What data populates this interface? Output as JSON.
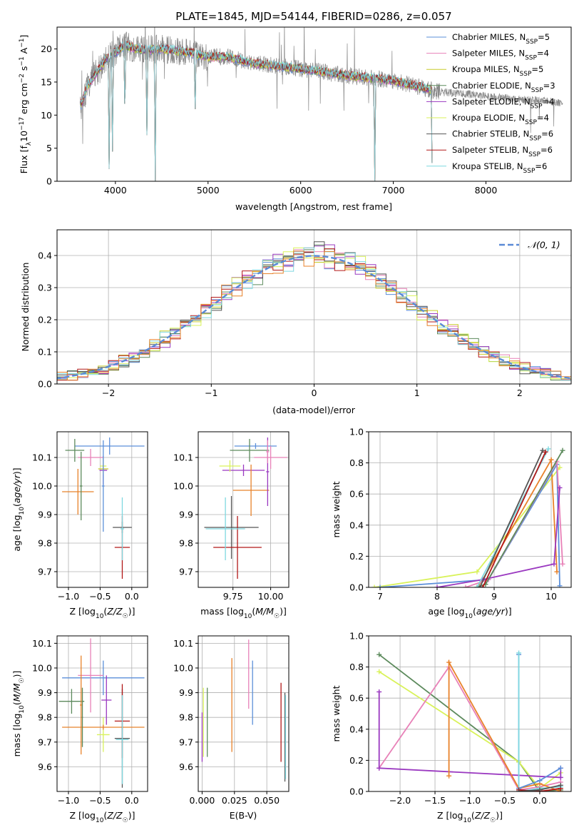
{
  "figure": {
    "title": "PLATE=1845, MJD=54144, FIBERID=0286, z=0.057"
  },
  "colors": {
    "chabrier_miles": "#5b8fd9",
    "salpeter_miles": "#e881b8",
    "kroupa_miles": "#c8cc2c",
    "chabrier_elodie": "#5c8a5c",
    "salpeter_elodie": "#9a38c0",
    "kroupa_elodie": "#d9f25a",
    "chabrier_stelib": "#555555",
    "salpeter_stelib": "#b21818",
    "kroupa_stelib": "#7fd8e0",
    "orange": "#e8822a",
    "data": "#8a8a8a",
    "grid": "#b0b0b0",
    "normal": "#5a8ad6"
  },
  "chart_data": [
    {
      "id": "spectrum",
      "type": "line",
      "xlabel": "wavelength [Angstrom, rest frame]",
      "ylabel": "Flux [f_λ 10^-17 erg cm^-2 s^-1 A^-1]",
      "xlim": [
        3370,
        8920
      ],
      "ylim": [
        0,
        23.3
      ],
      "xticks": [
        4000,
        5000,
        6000,
        7000,
        8000
      ],
      "yticks": [
        0,
        5,
        10,
        15,
        20
      ],
      "grid": false,
      "legend_position": "top-right",
      "legend": [
        {
          "label": "Chabrier MILES, N",
          "sub": "SSP",
          "n": "=5",
          "color": "#5b8fd9"
        },
        {
          "label": "Salpeter MILES, N",
          "sub": "SSP",
          "n": "=4",
          "color": "#e881b8"
        },
        {
          "label": "Kroupa MILES, N",
          "sub": "SSP",
          "n": "=5",
          "color": "#c8cc2c"
        },
        {
          "label": "Chabrier ELODIE, N",
          "sub": "SSP",
          "n": "=3",
          "color": "#5c8a5c"
        },
        {
          "label": "Salpeter ELODIE, N",
          "sub": "SSP",
          "n": "=4",
          "color": "#9a38c0"
        },
        {
          "label": "Kroupa ELODIE, N",
          "sub": "SSP",
          "n": "=4",
          "color": "#d9f25a"
        },
        {
          "label": "Chabrier STELIB, N",
          "sub": "SSP",
          "n": "=6",
          "color": "#555555"
        },
        {
          "label": "Salpeter STELIB, N",
          "sub": "SSP",
          "n": "=6",
          "color": "#b21818"
        },
        {
          "label": "Kroupa STELIB, N",
          "sub": "SSP",
          "n": "=6",
          "color": "#7fd8e0"
        }
      ],
      "continuum": [
        [
          3630,
          11.5
        ],
        [
          3700,
          14.5
        ],
        [
          3800,
          16.5
        ],
        [
          3900,
          18.5
        ],
        [
          4000,
          19.5
        ],
        [
          4100,
          20.5
        ],
        [
          4300,
          19.8
        ],
        [
          4500,
          20
        ],
        [
          4800,
          19.5
        ],
        [
          5000,
          18.8
        ],
        [
          5200,
          18.8
        ],
        [
          5500,
          17.8
        ],
        [
          6000,
          17.0
        ],
        [
          6500,
          16.0
        ],
        [
          7000,
          15.2
        ],
        [
          7500,
          13.5
        ],
        [
          7800,
          13.2
        ],
        [
          8000,
          12.8
        ],
        [
          8200,
          12.6
        ],
        [
          8400,
          12.3
        ],
        [
          8600,
          12.2
        ],
        [
          8830,
          11.8
        ]
      ],
      "data_range": [
        3620,
        8830
      ],
      "model_range": [
        3620,
        7420
      ],
      "absorption_lines": [
        [
          3933,
          0
        ],
        [
          3968,
          4.5
        ],
        [
          4102,
          9.5
        ],
        [
          4340,
          7
        ],
        [
          4430,
          0
        ],
        [
          4861,
          10
        ],
        [
          6800,
          0
        ],
        [
          7420,
          0
        ]
      ]
    },
    {
      "id": "residual_hist",
      "type": "histogram",
      "xlabel": "(data-model)/error",
      "ylabel": "Normed distribution",
      "xlim": [
        -2.5,
        2.5
      ],
      "ylim": [
        0,
        0.48
      ],
      "xticks": [
        -2,
        -1,
        0,
        1,
        2
      ],
      "yticks": [
        0.0,
        0.1,
        0.2,
        0.3,
        0.4
      ],
      "bin_width": 0.1,
      "grid": true,
      "legend_position": "top-right",
      "legend_label": "𝒩(0, 1)"
    },
    {
      "id": "age_vs_Z",
      "type": "errorbar",
      "xlabel": "Z [log10(Z/Z☉)]",
      "ylabel": "age [log10(age/yr)]",
      "xlim": [
        -1.18,
        0.25
      ],
      "ylim": [
        9.645,
        10.19
      ],
      "xticks": [
        -1.0,
        -0.5,
        0.0
      ],
      "yticks": [
        9.7,
        9.8,
        9.9,
        10.0,
        10.1
      ],
      "grid": true,
      "points": [
        {
          "x": -0.35,
          "xerr": 0.55,
          "y": 10.14,
          "yerr": 0.03,
          "color": "#5b8fd9"
        },
        {
          "x": -0.65,
          "xerr": 0.2,
          "y": 10.1,
          "yerr": 0.03,
          "color": "#e881b8"
        },
        {
          "x": -0.45,
          "xerr": 0.08,
          "y": 10.06,
          "yerr": 0.015,
          "color": "#c8cc2c"
        },
        {
          "x": -0.9,
          "xerr": 0.15,
          "y": 10.125,
          "yerr": 0.04,
          "color": "#5c8a5c"
        },
        {
          "x": -0.45,
          "xerr": 0.06,
          "y": 10.055,
          "yerr": 0.05,
          "color": "#9a38c0"
        },
        {
          "x": -0.45,
          "xerr": 0.05,
          "y": 10.07,
          "yerr": 0.03,
          "color": "#d9f25a"
        },
        {
          "x": -0.85,
          "xerr": 0.25,
          "y": 9.98,
          "yerr": 0.08,
          "color": "#e8822a"
        },
        {
          "x": -0.15,
          "xerr": 0.15,
          "y": 9.855,
          "yerr": 0.02,
          "color": "#555555"
        },
        {
          "x": -0.15,
          "xerr": 0.12,
          "y": 9.785,
          "yerr": 0.11,
          "color": "#b21818"
        },
        {
          "x": -0.15,
          "xerr": 0.03,
          "y": 9.85,
          "yerr": 0.11,
          "color": "#7fd8e0"
        },
        {
          "x": -0.8,
          "xerr": 0.02,
          "y": 10.0,
          "yerr": 0.12,
          "color": "#5c8a5c"
        },
        {
          "x": -0.45,
          "xerr": 0.02,
          "y": 10.0,
          "yerr": 0.16,
          "color": "#5b8fd9"
        }
      ]
    },
    {
      "id": "age_vs_mass",
      "type": "errorbar",
      "xlabel": "mass [log10(M/M☉)]",
      "ylabel": "",
      "xlim": [
        9.52,
        10.12
      ],
      "ylim": [
        9.645,
        10.19
      ],
      "xticks": [
        9.75,
        10.0
      ],
      "yticks": [
        9.7,
        9.8,
        9.9,
        10.0,
        10.1
      ],
      "grid": true,
      "points": [
        {
          "x": 9.9,
          "xerr": 0.14,
          "y": 10.14,
          "yerr": 0.01,
          "color": "#5b8fd9"
        },
        {
          "x": 10.0,
          "xerr": 0.11,
          "y": 10.1,
          "yerr": 0.04,
          "color": "#e881b8"
        },
        {
          "x": 9.86,
          "xerr": 0.13,
          "y": 10.125,
          "yerr": 0.04,
          "color": "#5c8a5c"
        },
        {
          "x": 9.82,
          "xerr": 0.14,
          "y": 10.055,
          "yerr": 0.02,
          "color": "#9a38c0"
        },
        {
          "x": 9.73,
          "xerr": 0.07,
          "y": 10.07,
          "yerr": 0.02,
          "color": "#d9f25a"
        },
        {
          "x": 9.87,
          "xerr": 0.12,
          "y": 9.985,
          "yerr": 0.09,
          "color": "#e8822a"
        },
        {
          "x": 9.74,
          "xerr": 0.18,
          "y": 9.855,
          "yerr": 0.11,
          "color": "#555555"
        },
        {
          "x": 9.78,
          "xerr": 0.16,
          "y": 9.785,
          "yerr": 0.11,
          "color": "#b21818"
        },
        {
          "x": 9.7,
          "xerr": 0.13,
          "y": 9.85,
          "yerr": 0.11,
          "color": "#7fd8e0"
        },
        {
          "x": 9.98,
          "xerr": 0.01,
          "y": 10.05,
          "yerr": 0.12,
          "color": "#9a38c0"
        },
        {
          "x": 9.98,
          "xerr": 0.01,
          "y": 10.12,
          "yerr": 0.04,
          "color": "#e881b8"
        }
      ]
    },
    {
      "id": "weight_vs_age",
      "type": "line",
      "xlabel": "age [log10(age/yr)]",
      "ylabel": "mass weight",
      "xlim": [
        6.8,
        10.35
      ],
      "ylim": [
        0,
        1.0
      ],
      "xticks": [
        7,
        8,
        9,
        10
      ],
      "yticks": [
        0.0,
        0.2,
        0.4,
        0.6,
        0.8,
        1.0
      ],
      "grid": true,
      "series": [
        {
          "color": "#d9f25a",
          "points": [
            [
              6.9,
              0.0
            ],
            [
              8.7,
              0.1
            ],
            [
              10.15,
              0.77
            ]
          ]
        },
        {
          "color": "#e8822a",
          "points": [
            [
              8.7,
              0.0
            ],
            [
              8.8,
              0.05
            ],
            [
              10.0,
              0.82
            ],
            [
              10.1,
              0.1
            ]
          ]
        },
        {
          "color": "#5b8fd9",
          "points": [
            [
              7.0,
              0.0
            ],
            [
              8.9,
              0.05
            ],
            [
              10.1,
              0.79
            ],
            [
              10.15,
              0.01
            ]
          ]
        },
        {
          "color": "#e881b8",
          "points": [
            [
              8.5,
              0.0
            ],
            [
              8.9,
              0.05
            ],
            [
              10.1,
              0.81
            ],
            [
              10.2,
              0.15
            ]
          ]
        },
        {
          "color": "#9a38c0",
          "points": [
            [
              8.0,
              0.0
            ],
            [
              8.8,
              0.05
            ],
            [
              10.05,
              0.15
            ],
            [
              10.15,
              0.64
            ]
          ]
        },
        {
          "color": "#5c8a5c",
          "points": [
            [
              8.7,
              0.0
            ],
            [
              8.85,
              0.02
            ],
            [
              10.2,
              0.88
            ]
          ]
        },
        {
          "color": "#7fd8e0",
          "points": [
            [
              8.7,
              0.0
            ],
            [
              9.95,
              0.89
            ]
          ]
        },
        {
          "color": "#b21818",
          "points": [
            [
              8.8,
              0.0
            ],
            [
              9.9,
              0.87
            ]
          ]
        },
        {
          "color": "#555555",
          "points": [
            [
              8.75,
              0.0
            ],
            [
              9.85,
              0.88
            ]
          ]
        }
      ]
    },
    {
      "id": "mass_vs_Z",
      "type": "errorbar",
      "xlabel": "Z [log10(Z/Z☉)]",
      "ylabel": "mass [log10(M/M☉)]",
      "xlim": [
        -1.18,
        0.25
      ],
      "ylim": [
        9.5,
        10.13
      ],
      "xticks": [
        -1.0,
        -0.5,
        0.0
      ],
      "yticks": [
        9.6,
        9.7,
        9.8,
        9.9,
        10.0,
        10.1
      ],
      "grid": true,
      "points": [
        {
          "x": -0.45,
          "xerr": 0.65,
          "y": 9.96,
          "yerr": 0.07,
          "color": "#5b8fd9"
        },
        {
          "x": -0.65,
          "xerr": 0.2,
          "y": 9.97,
          "yerr": 0.15,
          "color": "#e881b8"
        },
        {
          "x": -0.45,
          "xerr": 0.1,
          "y": 9.73,
          "yerr": 0.07,
          "color": "#d9f25a"
        },
        {
          "x": -0.95,
          "xerr": 0.2,
          "y": 9.865,
          "yerr": 0.05,
          "color": "#5c8a5c"
        },
        {
          "x": -0.4,
          "xerr": 0.08,
          "y": 9.87,
          "yerr": 0.1,
          "color": "#9a38c0"
        },
        {
          "x": -0.45,
          "xerr": 0.65,
          "y": 9.76,
          "yerr": 0.01,
          "color": "#e8822a"
        },
        {
          "x": -0.15,
          "xerr": 0.12,
          "y": 9.715,
          "yerr": 0.2,
          "color": "#555555"
        },
        {
          "x": -0.15,
          "xerr": 0.12,
          "y": 9.785,
          "yerr": 0.15,
          "color": "#b21818"
        },
        {
          "x": -0.15,
          "xerr": 0.1,
          "y": 9.71,
          "yerr": 0.18,
          "color": "#7fd8e0"
        },
        {
          "x": -0.8,
          "xerr": 0.02,
          "y": 9.85,
          "yerr": 0.2,
          "color": "#e8822a"
        },
        {
          "x": -0.78,
          "xerr": 0.01,
          "y": 9.8,
          "yerr": 0.12,
          "color": "#5c8a5c"
        }
      ]
    },
    {
      "id": "mass_vs_ebv",
      "type": "errorbar",
      "xlabel": "E(B-V)",
      "ylabel": "",
      "xlim": [
        -0.003,
        0.067
      ],
      "ylim": [
        9.5,
        10.13
      ],
      "xticks": [
        0.0,
        0.025,
        0.05
      ],
      "yticks": [
        9.6,
        9.7,
        9.8,
        9.9,
        10.0,
        10.1
      ],
      "grid": true,
      "points": [
        {
          "x": 0.0,
          "y": 9.72,
          "yerr": 0.1,
          "color": "#9a38c0"
        },
        {
          "x": 0.001,
          "y": 9.78,
          "yerr": 0.14,
          "color": "#d9f25a"
        },
        {
          "x": 0.004,
          "y": 9.78,
          "yerr": 0.14,
          "color": "#5c8a5c"
        },
        {
          "x": 0.023,
          "y": 9.85,
          "yerr": 0.19,
          "color": "#e8822a"
        },
        {
          "x": 0.036,
          "y": 9.975,
          "yerr": 0.14,
          "color": "#e881b8"
        },
        {
          "x": 0.039,
          "y": 9.9,
          "yerr": 0.13,
          "color": "#5b8fd9"
        },
        {
          "x": 0.061,
          "y": 9.78,
          "yerr": 0.16,
          "color": "#b21818"
        },
        {
          "x": 0.064,
          "y": 9.72,
          "yerr": 0.18,
          "color": "#555555"
        },
        {
          "x": 0.0645,
          "y": 9.72,
          "yerr": 0.17,
          "color": "#7fd8e0"
        }
      ]
    },
    {
      "id": "weight_vs_Z",
      "type": "line",
      "xlabel": "Z [log10(Z/Z☉)]",
      "ylabel": "mass weight",
      "xlim": [
        -2.45,
        0.45
      ],
      "ylim": [
        0,
        1.0
      ],
      "xticks": [
        -2.0,
        -1.5,
        -1.0,
        -0.5,
        0.0
      ],
      "yticks": [
        0.0,
        0.2,
        0.4,
        0.6,
        0.8,
        1.0
      ],
      "grid": true,
      "series": [
        {
          "color": "#5c8a5c",
          "points": [
            [
              -2.3,
              0.88
            ],
            [
              -0.3,
              0.19
            ],
            [
              0.0,
              0.0
            ],
            [
              0.3,
              0.01
            ]
          ]
        },
        {
          "color": "#d9f25a",
          "points": [
            [
              -2.3,
              0.77
            ],
            [
              -0.3,
              0.19
            ],
            [
              0.0,
              0.02
            ],
            [
              0.3,
              0.12
            ]
          ]
        },
        {
          "color": "#e881b8",
          "points": [
            [
              -2.3,
              0.15
            ],
            [
              -1.3,
              0.8
            ],
            [
              -0.3,
              0.01
            ],
            [
              0.0,
              0.03
            ],
            [
              0.3,
              0.06
            ]
          ]
        },
        {
          "color": "#9a38c0",
          "points": [
            [
              -2.3,
              0.64
            ],
            [
              -2.3,
              0.15
            ],
            [
              0.3,
              0.09
            ],
            [
              0.3,
              0.15
            ]
          ]
        },
        {
          "color": "#e8822a",
          "points": [
            [
              -1.3,
              0.1
            ],
            [
              -1.3,
              0.83
            ],
            [
              -0.3,
              0.02
            ],
            [
              0.0,
              0.05
            ],
            [
              0.3,
              0.0
            ]
          ]
        },
        {
          "color": "#5b8fd9",
          "points": [
            [
              -0.3,
              0.88
            ],
            [
              -0.3,
              0.02
            ],
            [
              0.0,
              0.07
            ],
            [
              0.3,
              0.15
            ]
          ]
        },
        {
          "color": "#7fd8e0",
          "points": [
            [
              -0.3,
              0.89
            ],
            [
              -0.3,
              0.0
            ],
            [
              0.0,
              0.02
            ],
            [
              0.3,
              0.03
            ]
          ]
        },
        {
          "color": "#b21818",
          "points": [
            [
              -0.3,
              0.01
            ],
            [
              0.0,
              0.0
            ],
            [
              0.3,
              0.02
            ]
          ]
        },
        {
          "color": "#555555",
          "points": [
            [
              -0.3,
              0.0
            ],
            [
              0.0,
              0.01
            ],
            [
              0.3,
              0.04
            ]
          ]
        }
      ]
    }
  ]
}
